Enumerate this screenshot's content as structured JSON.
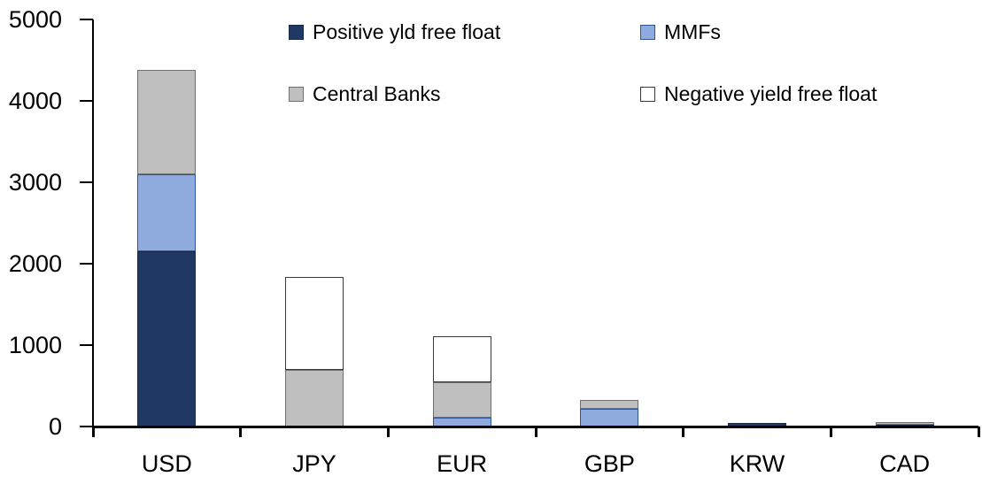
{
  "chart_data": {
    "type": "bar",
    "subtype": "stacked",
    "title": "",
    "xlabel": "",
    "ylabel": "",
    "categories": [
      "USD",
      "JPY",
      "EUR",
      "GBP",
      "KRW",
      "CAD"
    ],
    "series": [
      {
        "name": "Positive yld free float",
        "color": "#203864",
        "border_color": "#17294a",
        "values": [
          2150,
          0,
          0,
          0,
          40,
          25
        ]
      },
      {
        "name": "MMFs",
        "color": "#8FAADC",
        "border_color": "#2E5597",
        "values": [
          950,
          0,
          110,
          220,
          0,
          0
        ]
      },
      {
        "name": "Central Banks",
        "color": "#BFBFBF",
        "border_color": "#707070",
        "values": [
          1280,
          700,
          435,
          110,
          0,
          30
        ]
      },
      {
        "name": "Negative yield free float",
        "color": "#FFFFFF",
        "border_color": "#3a3a3a",
        "values": [
          0,
          1140,
          565,
          0,
          0,
          0
        ]
      }
    ],
    "totals": {
      "USD": 4380,
      "JPY": 1840,
      "EUR": 1110,
      "GBP": 330,
      "KRW": 40,
      "CAD": 55
    },
    "ylim": [
      0,
      5000
    ],
    "ytick_labels": [
      "0",
      "1000",
      "2000",
      "3000",
      "4000",
      "5000"
    ],
    "grid": false,
    "legend_position": "top",
    "axis_color": "#000000"
  }
}
